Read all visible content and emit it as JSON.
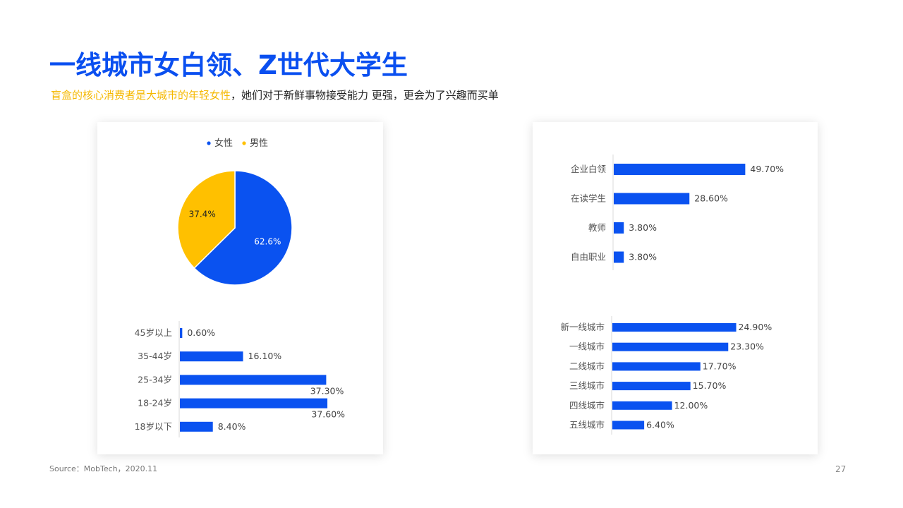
{
  "title": "一线城市女白领、Z世代大学生",
  "subtitle": {
    "highlight": "盲盒的核心消费者是大城市的年轻女性",
    "rest": "，她们对于新鲜事物接受能力 更强，更会为了兴趣而买单"
  },
  "source": "Source：MobTech，2020.11",
  "page_number": "27",
  "colors": {
    "blue": "#0a52f0",
    "yellow": "#ffc000",
    "title_blue": "#0a4ff0"
  },
  "chart_data": [
    {
      "type": "pie",
      "legend_position": "top",
      "labels": [
        "女性",
        "男性"
      ],
      "values": [
        62.6,
        37.4
      ],
      "value_labels": [
        "62.6%",
        "37.4%"
      ],
      "colors": [
        "#0a52f0",
        "#ffc000"
      ]
    },
    {
      "type": "bar",
      "orientation": "horizontal",
      "categories": [
        "45岁以上",
        "35-44岁",
        "25-34岁",
        "18-24岁",
        "18岁以下"
      ],
      "values": [
        0.6,
        16.1,
        37.3,
        37.6,
        8.4
      ],
      "value_labels": [
        "0.60%",
        "16.10%",
        "37.30%",
        "37.60%",
        "8.40%"
      ]
    },
    {
      "type": "bar",
      "orientation": "horizontal",
      "categories": [
        "企业白领",
        "在读学生",
        "教师",
        "自由职业"
      ],
      "values": [
        49.7,
        28.6,
        3.8,
        3.8
      ],
      "value_labels": [
        "49.70%",
        "28.60%",
        "3.80%",
        "3.80%"
      ]
    },
    {
      "type": "bar",
      "orientation": "horizontal",
      "categories": [
        "新一线城市",
        "一线城市",
        "二线城市",
        "三线城市",
        "四线城市",
        "五线城市"
      ],
      "values": [
        24.9,
        23.3,
        17.7,
        15.7,
        12.0,
        6.4
      ],
      "value_labels": [
        "24.90%",
        "23.30%",
        "17.70%",
        "15.70%",
        "12.00%",
        "6.40%"
      ]
    }
  ]
}
